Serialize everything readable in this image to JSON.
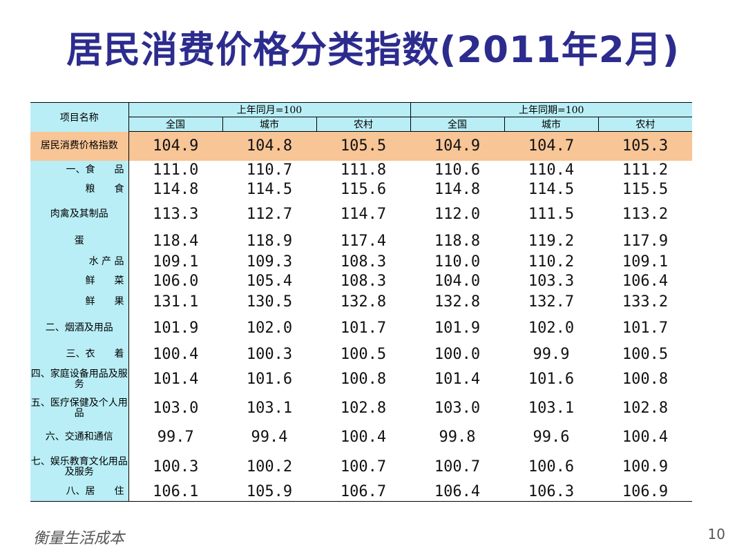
{
  "slide": {
    "title": "居民消费价格分类指数(2011年2月)",
    "footer": "衡量生活成本",
    "page_number": "10"
  },
  "table": {
    "corner_label": "项目名称",
    "groups": [
      "上年同月=100",
      "上年同期=100"
    ],
    "subheaders": [
      "全国",
      "城市",
      "农村",
      "全国",
      "城市",
      "农村"
    ],
    "total_row": {
      "label": "居民消费价格指数",
      "values": [
        "104.9",
        "104.8",
        "105.5",
        "104.9",
        "104.7",
        "105.3"
      ]
    },
    "rows": [
      {
        "label": "一、食　　品",
        "values": [
          "111.0",
          "110.7",
          "111.8",
          "110.6",
          "110.4",
          "111.2"
        ]
      },
      {
        "label": "粮　　食",
        "values": [
          "114.8",
          "114.5",
          "115.6",
          "114.8",
          "114.5",
          "115.5"
        ]
      },
      {
        "label": "肉禽及其制品",
        "values": [
          "113.3",
          "112.7",
          "114.7",
          "112.0",
          "111.5",
          "113.2"
        ]
      },
      {
        "label": "蛋",
        "values": [
          "118.4",
          "118.9",
          "117.4",
          "118.8",
          "119.2",
          "117.9"
        ]
      },
      {
        "label": "水 产 品",
        "values": [
          "109.1",
          "109.3",
          "108.3",
          "110.0",
          "110.2",
          "109.1"
        ]
      },
      {
        "label": "鲜　　菜",
        "values": [
          "106.0",
          "105.4",
          "108.3",
          "104.0",
          "103.3",
          "106.4"
        ]
      },
      {
        "label": "鲜　　果",
        "values": [
          "131.1",
          "130.5",
          "132.8",
          "132.8",
          "132.7",
          "133.2"
        ]
      },
      {
        "label": "二、烟酒及用品",
        "values": [
          "101.9",
          "102.0",
          "101.7",
          "101.9",
          "102.0",
          "101.7"
        ]
      },
      {
        "label": "三、衣　　着",
        "values": [
          "100.4",
          "100.3",
          "100.5",
          "100.0",
          "99.9",
          "100.5"
        ]
      },
      {
        "label": "四、家庭设备用品及服务",
        "values": [
          "101.4",
          "101.6",
          "100.8",
          "101.4",
          "101.6",
          "100.8"
        ]
      },
      {
        "label": "五、医疗保健及个人用品",
        "values": [
          "103.0",
          "103.1",
          "102.8",
          "103.0",
          "103.1",
          "102.8"
        ]
      },
      {
        "label": "六、交通和通信",
        "values": [
          "99.7",
          "99.4",
          "100.4",
          "99.8",
          "99.6",
          "100.4"
        ]
      },
      {
        "label": "七、娱乐教育文化用品及服务",
        "values": [
          "100.3",
          "100.2",
          "100.7",
          "100.7",
          "100.6",
          "100.9"
        ]
      },
      {
        "label": "八、居　　住",
        "values": [
          "106.1",
          "105.9",
          "106.7",
          "106.4",
          "106.3",
          "106.9"
        ]
      }
    ]
  }
}
